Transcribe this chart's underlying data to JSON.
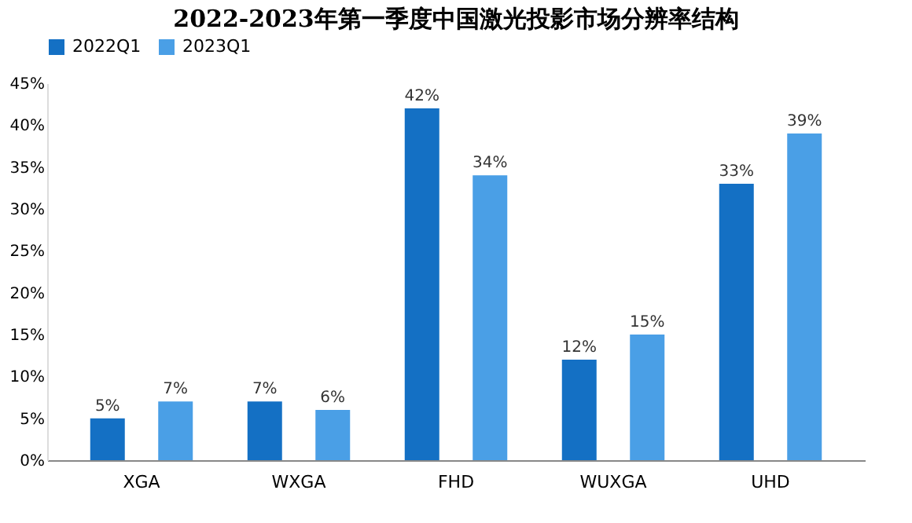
{
  "chart_data": {
    "type": "bar",
    "title": "2022-2023年第一季度中国激光投影市场分辨率结构",
    "categories": [
      "XGA",
      "WXGA",
      "FHD",
      "WUXGA",
      "UHD"
    ],
    "series": [
      {
        "name": "2022Q1",
        "color": "#1470c4",
        "values": [
          5,
          7,
          42,
          12,
          33
        ],
        "value_labels": [
          "5%",
          "7%",
          "42%",
          "12%",
          "33%"
        ]
      },
      {
        "name": "2023Q1",
        "color": "#4a9fe6",
        "values": [
          7,
          6,
          34,
          15,
          39
        ],
        "value_labels": [
          "7%",
          "6%",
          "34%",
          "15%",
          "39%"
        ]
      }
    ],
    "ylim": [
      0,
      45
    ],
    "yticks": [
      {
        "value": 0,
        "label": "0%"
      },
      {
        "value": 5,
        "label": "5%"
      },
      {
        "value": 10,
        "label": "10%"
      },
      {
        "value": 15,
        "label": "15%"
      },
      {
        "value": 20,
        "label": "20%"
      },
      {
        "value": 25,
        "label": "25%"
      },
      {
        "value": 30,
        "label": "30%"
      },
      {
        "value": 35,
        "label": "35%"
      },
      {
        "value": 40,
        "label": "40%"
      },
      {
        "value": 45,
        "label": "45%"
      }
    ],
    "grid": false,
    "legend": "top"
  }
}
